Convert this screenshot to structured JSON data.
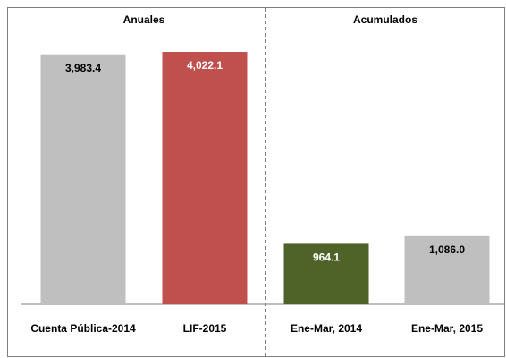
{
  "chart_data": {
    "type": "bar",
    "group_labels": [
      "Anuales",
      "Acumulados"
    ],
    "categories": [
      "Cuenta Pública-2014",
      "LIF-2015",
      "Ene-Mar, 2014",
      "Ene-Mar, 2015"
    ],
    "values": [
      3983.4,
      4022.1,
      964.1,
      1086.0
    ],
    "value_labels": [
      "3,983.4",
      "4,022.1",
      "964.1",
      "1,086.0"
    ],
    "colors": [
      "#bfbfbf",
      "#c0504d",
      "#4f6228",
      "#bfbfbf"
    ]
  }
}
